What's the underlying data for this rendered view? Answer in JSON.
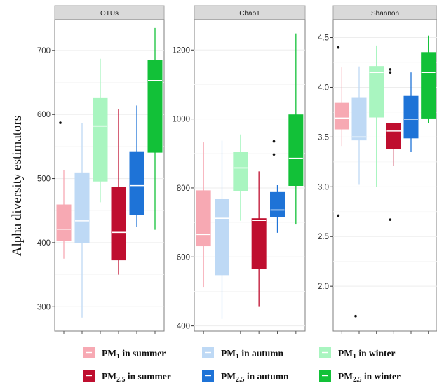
{
  "chart_data": {
    "type": "box",
    "ylabel": "Alpha diversity estimators",
    "groups": [
      {
        "key": "pm1_summer",
        "color": "#F7A9B3",
        "median_color": "#ffffff"
      },
      {
        "key": "pm1_autumn",
        "color": "#BED9F5",
        "median_color": "#ffffff"
      },
      {
        "key": "pm1_winter",
        "color": "#A9F5C0",
        "median_color": "#ffffff"
      },
      {
        "key": "pm25_summer",
        "color": "#BF0E2F",
        "median_color": "#ffffff"
      },
      {
        "key": "pm25_autumn",
        "color": "#1E73D7",
        "median_color": "#ffffff"
      },
      {
        "key": "pm25_winter",
        "color": "#12C138",
        "median_color": "#ffffff"
      }
    ],
    "legend": [
      {
        "key": "pm1_summer",
        "pm": "PM",
        "sub": "1",
        "rest": " in summer",
        "color": "#F7A9B3"
      },
      {
        "key": "pm1_autumn",
        "pm": "PM",
        "sub": "1",
        "rest": " in autumn",
        "color": "#BED9F5"
      },
      {
        "key": "pm1_winter",
        "pm": "PM",
        "sub": "1",
        "rest": " in winter",
        "color": "#A9F5C0"
      },
      {
        "key": "pm25_summer",
        "pm": "PM",
        "sub": "2.5",
        "rest": " in summer",
        "color": "#BF0E2F"
      },
      {
        "key": "pm25_autumn",
        "pm": "PM",
        "sub": "2.5",
        "rest": " in autumn",
        "color": "#1E73D7"
      },
      {
        "key": "pm25_winter",
        "pm": "PM",
        "sub": "2.5",
        "rest": " in winter",
        "color": "#12C138"
      }
    ],
    "panels": [
      {
        "title": "OTUs",
        "ylim": [
          262,
          748
        ],
        "yticks": [
          300,
          400,
          500,
          600,
          700
        ],
        "boxes": [
          {
            "min": 375,
            "q1": 403,
            "median": 421,
            "q3": 459,
            "max": 513,
            "outliers": [
              587
            ]
          },
          {
            "min": 283,
            "q1": 400,
            "median": 434,
            "q3": 509,
            "max": 586,
            "outliers": []
          },
          {
            "min": 463,
            "q1": 496,
            "median": 582,
            "q3": 625,
            "max": 687,
            "outliers": []
          },
          {
            "min": 350,
            "q1": 373,
            "median": 416,
            "q3": 486,
            "max": 608,
            "outliers": []
          },
          {
            "min": 424,
            "q1": 444,
            "median": 489,
            "q3": 542,
            "max": 614,
            "outliers": []
          },
          {
            "min": 420,
            "q1": 541,
            "median": 653,
            "q3": 684,
            "max": 735,
            "outliers": []
          }
        ]
      },
      {
        "title": "Chao1",
        "ylim": [
          385,
          1288
        ],
        "yticks": [
          400,
          600,
          800,
          1000,
          1200
        ],
        "boxes": [
          {
            "min": 513,
            "q1": 632,
            "median": 665,
            "q3": 792,
            "max": 932,
            "outliers": []
          },
          {
            "min": 420,
            "q1": 548,
            "median": 712,
            "q3": 767,
            "max": 937,
            "outliers": []
          },
          {
            "min": 705,
            "q1": 791,
            "median": 858,
            "q3": 903,
            "max": 955,
            "outliers": []
          },
          {
            "min": 457,
            "q1": 566,
            "median": 706,
            "q3": 711,
            "max": 848,
            "outliers": []
          },
          {
            "min": 670,
            "q1": 716,
            "median": 736,
            "q3": 787,
            "max": 808,
            "outliers": [
              897,
              935
            ]
          },
          {
            "min": 694,
            "q1": 807,
            "median": 886,
            "q3": 1012,
            "max": 1248,
            "outliers": []
          }
        ]
      },
      {
        "title": "Shannon",
        "ylim": [
          1.55,
          4.68
        ],
        "yticks": [
          2.0,
          2.5,
          3.0,
          3.5,
          4.0,
          4.5
        ],
        "boxes": [
          {
            "min": 3.41,
            "q1": 3.58,
            "median": 3.69,
            "q3": 3.84,
            "max": 4.2,
            "outliers": [
              4.4,
              2.71
            ]
          },
          {
            "min": 3.02,
            "q1": 3.47,
            "median": 3.5,
            "q3": 3.89,
            "max": 4.21,
            "outliers": [
              1.7
            ]
          },
          {
            "min": 3.0,
            "q1": 3.7,
            "median": 4.15,
            "q3": 4.21,
            "max": 4.42,
            "outliers": []
          },
          {
            "min": 3.21,
            "q1": 3.38,
            "median": 3.56,
            "q3": 3.64,
            "max": 3.64,
            "outliers": [
              4.18,
              4.15,
              2.67
            ]
          },
          {
            "min": 3.35,
            "q1": 3.49,
            "median": 3.68,
            "q3": 3.91,
            "max": 4.15,
            "outliers": []
          },
          {
            "min": 3.64,
            "q1": 3.69,
            "median": 4.15,
            "q3": 4.35,
            "max": 4.52,
            "outliers": []
          }
        ]
      }
    ]
  }
}
